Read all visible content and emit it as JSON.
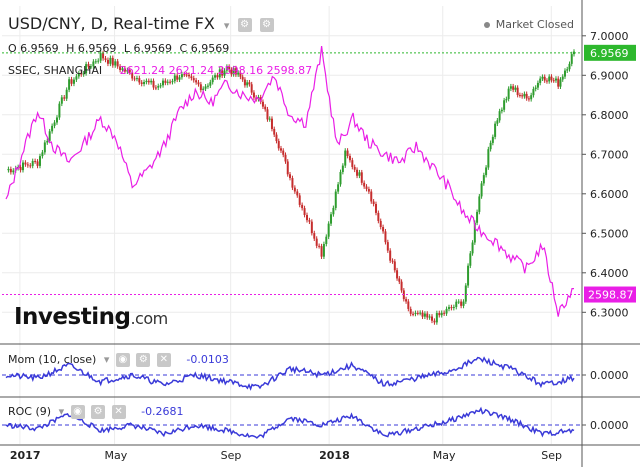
{
  "header": {
    "title": "USD/CNY, D, Real-time FX",
    "status": "Market Closed"
  },
  "ohlc": {
    "o": "O 6.9569",
    "h": "H 6.9569",
    "l": "L 6.9569",
    "c": "C 6.9569"
  },
  "overlay": {
    "name": "SSEC, SHANGHAI",
    "values": "2621.24  2621.24  2598.16  2598.87"
  },
  "momentum": {
    "label": "Mom (10, close)",
    "value": "-0.0103"
  },
  "roc": {
    "label": "ROC (9)",
    "value": "-0.2681"
  },
  "brand": {
    "name": "Investing",
    "suffix": ".com"
  },
  "colors": {
    "up": "#2e9c2e",
    "down": "#c62d2d",
    "overlay": "#e91ee6",
    "indicator": "#3a3ad8",
    "last_price": "#2db82d"
  },
  "chart_data": [
    {
      "type": "candlestick",
      "title": "USD/CNY, D, Real-time FX",
      "x_ticks": [
        "2017",
        "May",
        "Sep",
        "2018",
        "May",
        "Sep"
      ],
      "y_ticks": [
        "7.0000",
        "6.9000",
        "6.8000",
        "6.7000",
        "6.6000",
        "6.5000",
        "6.4000",
        "6.3000"
      ],
      "ylim": [
        6.24,
        7.04
      ],
      "last_value": "6.9569",
      "series": [
        {
          "name": "USD/CNY",
          "x": [
            0,
            2,
            4,
            6,
            8,
            9.5,
            11,
            12.5,
            14,
            15,
            16,
            17,
            18,
            20,
            21.5,
            23,
            24.5,
            25.5,
            27,
            29,
            30,
            31,
            32,
            33,
            34,
            35,
            36
          ],
          "y": [
            6.66,
            6.68,
            6.88,
            6.95,
            6.9,
            6.87,
            6.9,
            6.87,
            6.92,
            6.89,
            6.84,
            6.76,
            6.64,
            6.45,
            6.7,
            6.61,
            6.42,
            6.3,
            6.28,
            6.33,
            6.6,
            6.78,
            6.87,
            6.84,
            6.9,
            6.88,
            6.96
          ]
        }
      ]
    },
    {
      "type": "line",
      "y_ticks": [
        "2598.87"
      ],
      "last_value": "2598.87",
      "series": [
        {
          "name": "SSEC, SHANGHAI",
          "x": [
            0,
            1,
            2,
            3,
            4,
            5,
            6,
            7,
            8,
            9,
            10,
            11,
            12,
            13,
            14,
            15,
            16,
            17,
            18,
            19,
            20,
            21,
            22,
            23,
            24,
            25,
            26,
            27,
            28,
            29,
            30,
            31,
            32,
            33,
            34,
            35,
            36
          ],
          "y": [
            6.58,
            6.7,
            6.81,
            6.72,
            6.68,
            6.73,
            6.79,
            6.74,
            6.62,
            6.66,
            6.72,
            6.81,
            6.86,
            6.83,
            6.88,
            6.85,
            6.84,
            6.9,
            6.8,
            6.78,
            6.96,
            6.72,
            6.79,
            6.73,
            6.7,
            6.68,
            6.72,
            6.67,
            6.62,
            6.55,
            6.51,
            6.48,
            6.44,
            6.41,
            6.47,
            6.3,
            6.36
          ]
        }
      ]
    },
    {
      "type": "line",
      "title": "Mom (10, close)",
      "y_ticks": [
        "0.0000"
      ],
      "series": [
        {
          "name": "Mom (10, close)",
          "x": [
            0,
            2,
            4,
            6,
            8,
            10,
            12,
            14,
            16,
            18,
            20,
            22,
            24,
            26,
            28,
            30,
            32,
            34,
            36
          ],
          "y": [
            0.0,
            -0.01,
            0.03,
            -0.02,
            0.0,
            -0.03,
            0.0,
            -0.02,
            -0.04,
            0.02,
            0.0,
            0.03,
            -0.03,
            -0.01,
            0.01,
            0.05,
            0.02,
            -0.03,
            -0.01
          ]
        }
      ]
    },
    {
      "type": "line",
      "title": "ROC (9)",
      "y_ticks": [
        "0.0000"
      ],
      "series": [
        {
          "name": "ROC (9)",
          "x": [
            0,
            2,
            4,
            6,
            8,
            10,
            12,
            14,
            16,
            18,
            20,
            22,
            24,
            26,
            28,
            30,
            32,
            34,
            36
          ],
          "y": [
            0.0,
            -0.2,
            0.6,
            -0.3,
            0.0,
            -0.5,
            0.0,
            -0.3,
            -0.7,
            0.4,
            0.0,
            0.5,
            -0.6,
            -0.2,
            0.2,
            0.8,
            0.3,
            -0.5,
            -0.3
          ]
        }
      ]
    }
  ]
}
